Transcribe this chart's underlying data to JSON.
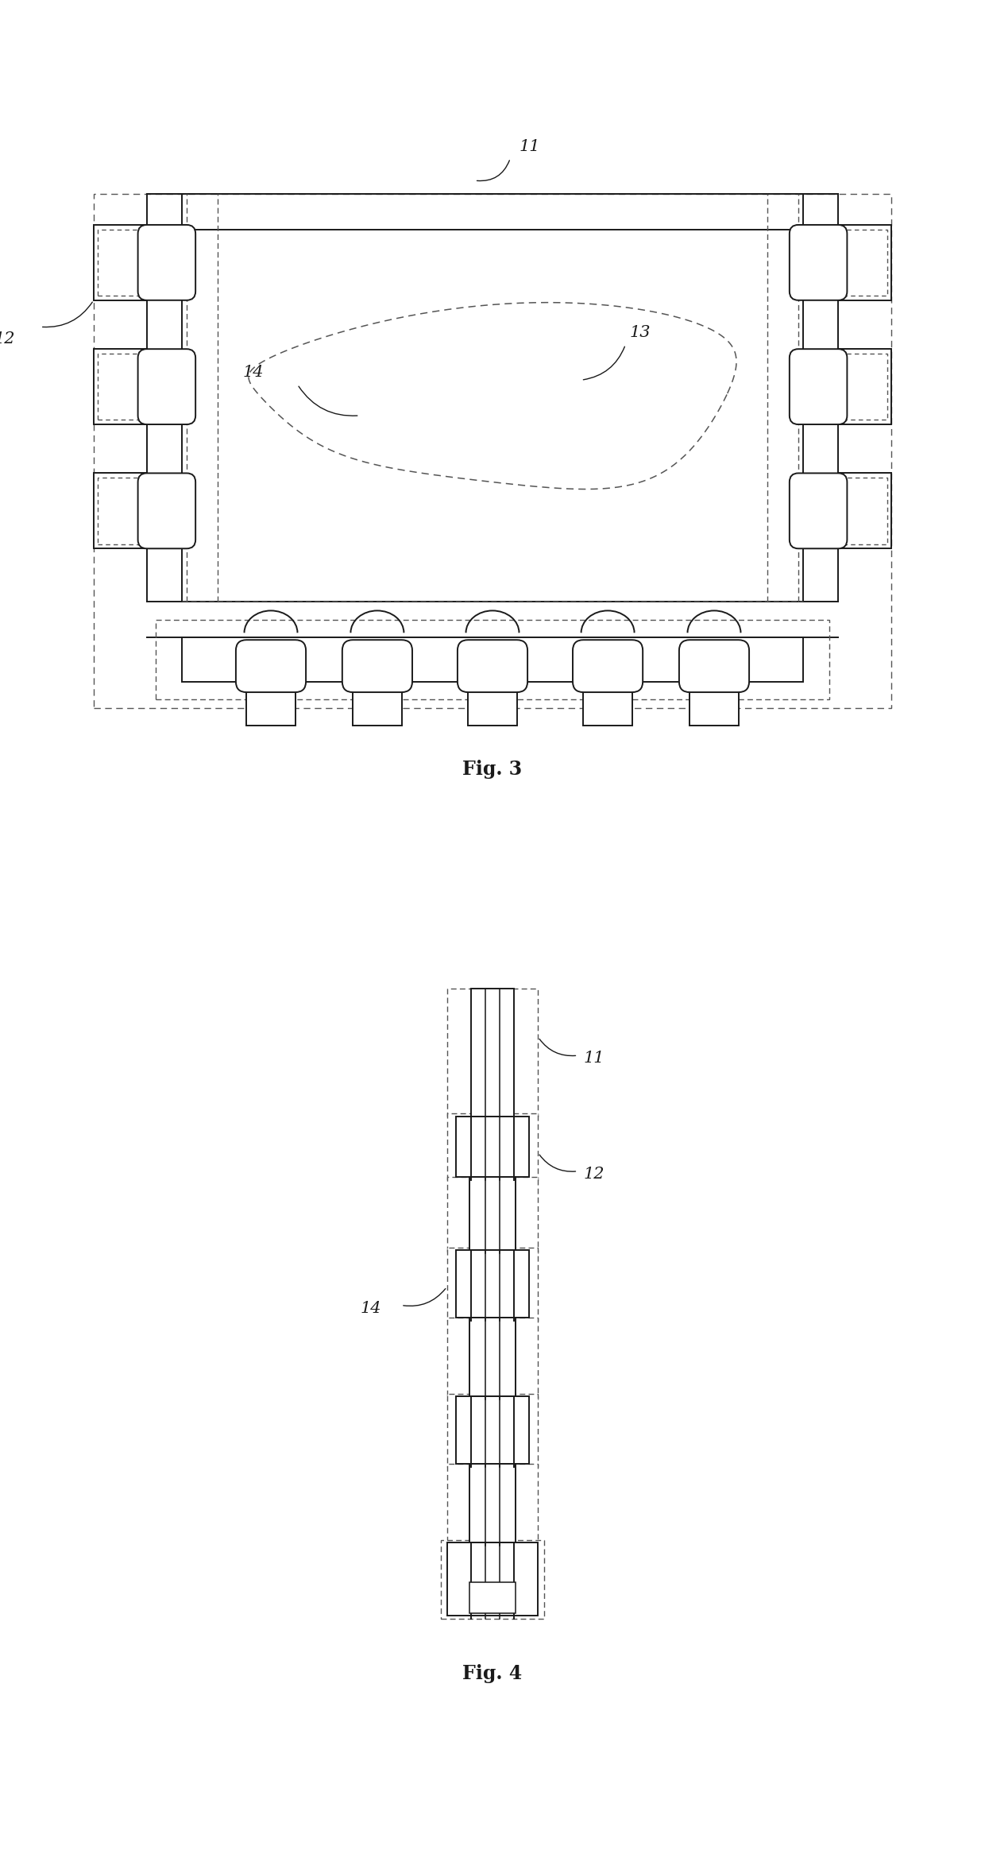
{
  "fig_width": 12.4,
  "fig_height": 23.33,
  "bg_color": "#ffffff",
  "line_color": "#1a1a1a",
  "dashed_color": "#555555",
  "fig3_label": "Fig. 3",
  "fig4_label": "Fig. 4",
  "lw_solid": 1.4,
  "lw_dashed": 1.0,
  "label_11": "11",
  "label_12": "12",
  "label_13": "13",
  "label_14": "14"
}
